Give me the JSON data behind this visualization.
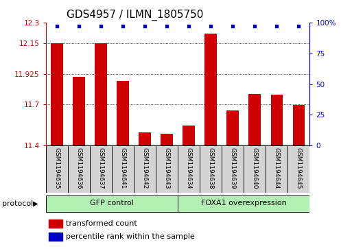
{
  "title": "GDS4957 / ILMN_1805750",
  "samples": [
    "GSM1194635",
    "GSM1194636",
    "GSM1194637",
    "GSM1194641",
    "GSM1194642",
    "GSM1194643",
    "GSM1194634",
    "GSM1194638",
    "GSM1194639",
    "GSM1194640",
    "GSM1194644",
    "GSM1194645"
  ],
  "bar_values": [
    12.15,
    11.905,
    12.148,
    11.875,
    11.495,
    11.485,
    11.545,
    12.22,
    11.655,
    11.775,
    11.77,
    11.695
  ],
  "percentile_values": [
    97,
    97,
    97,
    97,
    97,
    97,
    97,
    97,
    97,
    97,
    97,
    97
  ],
  "bar_color": "#cc0000",
  "percentile_color": "#0000cc",
  "ylim_left": [
    11.4,
    12.3
  ],
  "yticks_left": [
    11.4,
    11.7,
    11.925,
    12.15,
    12.3
  ],
  "ytick_labels_left": [
    "11.4",
    "11.7",
    "11.925",
    "12.15",
    "12.3"
  ],
  "ylim_right": [
    0,
    100
  ],
  "yticks_right": [
    0,
    25,
    50,
    75,
    100
  ],
  "ytick_labels_right": [
    "0",
    "25",
    "50",
    "75",
    "100%"
  ],
  "group1_label": "GFP control",
  "group2_label": "FOXA1 overexpression",
  "group1_indices": [
    0,
    1,
    2,
    3,
    4,
    5
  ],
  "group2_indices": [
    6,
    7,
    8,
    9,
    10,
    11
  ],
  "group1_color": "#b3f0b3",
  "group2_color": "#b3f0b3",
  "protocol_label": "protocol",
  "legend_bar_label": "transformed count",
  "legend_pct_label": "percentile rank within the sample",
  "bar_width": 0.55,
  "background_color": "#ffffff",
  "title_fontsize": 11,
  "tick_label_fontsize": 7.5,
  "sample_fontsize": 6.5,
  "legend_fontsize": 8,
  "proto_fontsize": 8
}
